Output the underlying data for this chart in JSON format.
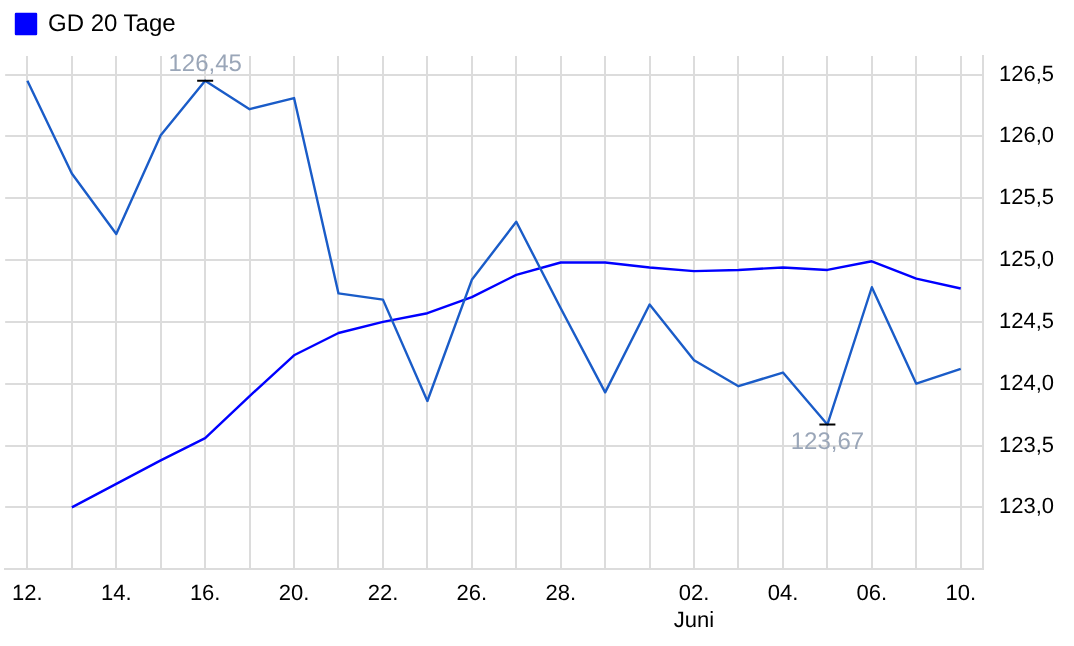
{
  "chart_data": {
    "type": "line",
    "categories": [
      "12.",
      null,
      "14.",
      null,
      "16.",
      null,
      "20.",
      null,
      "22.",
      null,
      "26.",
      null,
      "28.",
      null,
      null,
      "02.\nJuni",
      null,
      "04.",
      null,
      "06.",
      null,
      "10."
    ],
    "series": [
      {
        "color": "#1a5cc8",
        "values": [
          126.45,
          125.7,
          125.21,
          126.01,
          126.45,
          126.22,
          126.31,
          124.73,
          124.68,
          123.86,
          124.84,
          125.31,
          124.61,
          123.93,
          124.64,
          124.19,
          123.98,
          124.09,
          123.67,
          124.78,
          124.0,
          124.12
        ],
        "value_labels": [
          null,
          null,
          null,
          null,
          "126,45",
          null,
          null,
          null,
          null,
          null,
          null,
          null,
          null,
          null,
          null,
          null,
          null,
          null,
          "123,67",
          null,
          null,
          null
        ]
      },
      {
        "name": "GD 20 Tage",
        "color": "#0000ff",
        "values": [
          null,
          123.0,
          123.19,
          123.38,
          123.56,
          123.9,
          124.23,
          124.41,
          124.5,
          124.57,
          124.7,
          124.88,
          124.98,
          124.98,
          124.94,
          124.91,
          124.92,
          124.94,
          124.92,
          124.99,
          124.85,
          124.77
        ]
      }
    ],
    "ylim": [
      122.5,
      126.65
    ],
    "yticks": [
      {
        "value": 123,
        "label": "123,0"
      },
      {
        "value": 123.5,
        "label": "123,5"
      },
      {
        "value": 124,
        "label": "124,0"
      },
      {
        "value": 124.5,
        "label": "124,5"
      },
      {
        "value": 125,
        "label": "125,0"
      },
      {
        "value": 125.5,
        "label": "125,5"
      },
      {
        "value": 126,
        "label": "126,0"
      },
      {
        "value": 126.5,
        "label": "126,5"
      }
    ],
    "grid": true,
    "legend": "top left",
    "marker": "none",
    "line_style": "solid"
  }
}
